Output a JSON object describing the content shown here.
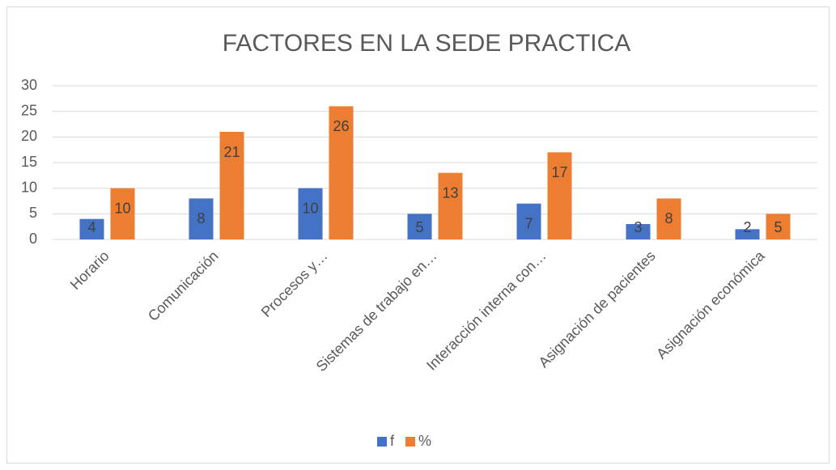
{
  "chart_data": {
    "type": "bar",
    "title": "FACTORES EN LA SEDE PRACTICA",
    "categories": [
      "Horario",
      "Comunicación",
      "Procesos y…",
      "Sistemas de trabajo en…",
      "Interacción interna con…",
      "Asignación de pacientes",
      "Asignación económica"
    ],
    "series": [
      {
        "name": "f",
        "color": "#4472c4",
        "values": [
          4,
          8,
          10,
          5,
          7,
          3,
          2
        ]
      },
      {
        "name": "%",
        "color": "#ed7d31",
        "values": [
          10,
          21,
          26,
          13,
          17,
          8,
          5
        ]
      }
    ],
    "ylim": [
      0,
      30
    ],
    "yticks": [
      0,
      5,
      10,
      15,
      20,
      25,
      30
    ],
    "grid": true,
    "legend": "bottom"
  }
}
